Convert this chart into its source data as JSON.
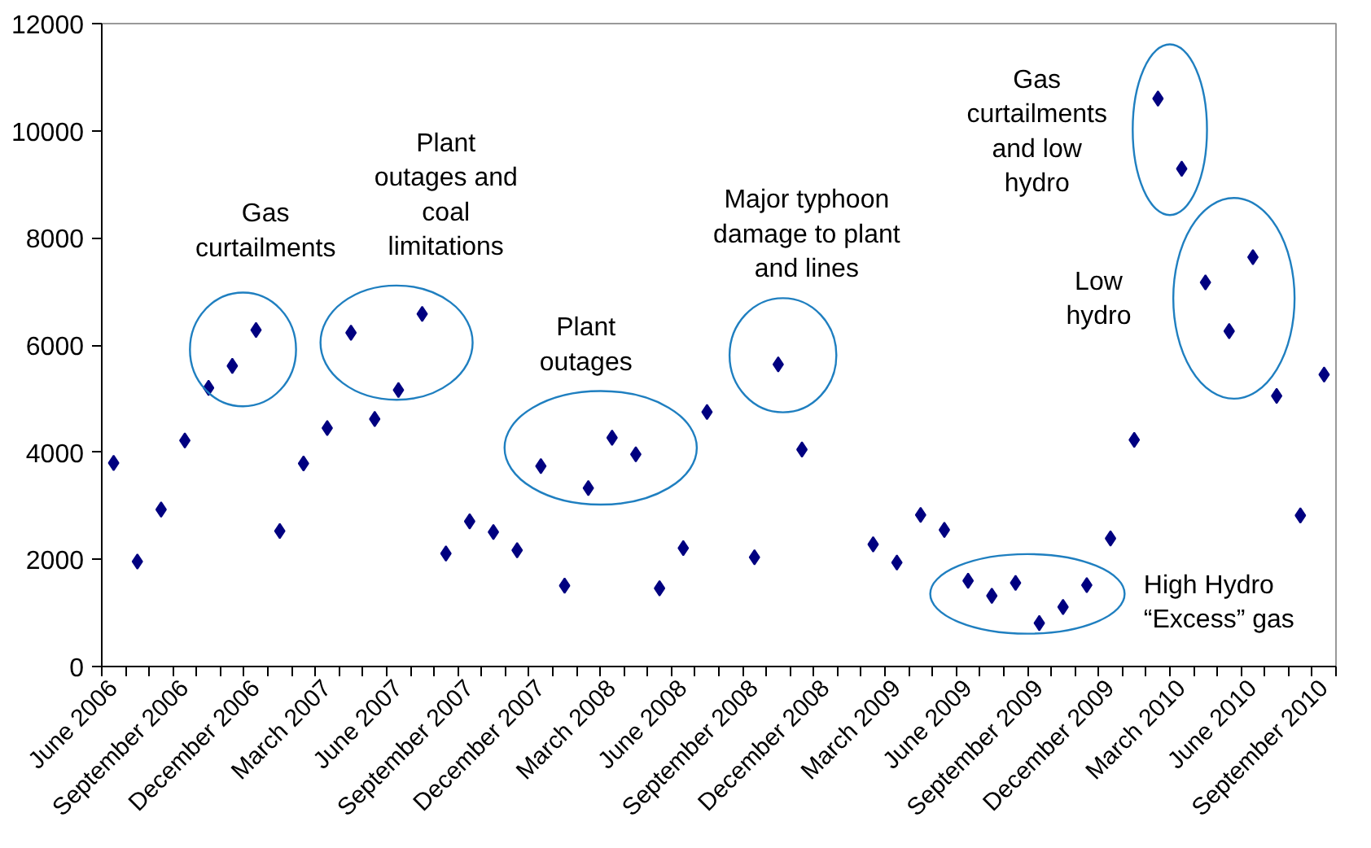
{
  "chart_data": {
    "type": "scatter",
    "categories": [
      "June 2006",
      null,
      null,
      "September 2006",
      null,
      null,
      "December 2006",
      null,
      null,
      "March 2007",
      null,
      null,
      "June 2007",
      null,
      null,
      "September 2007",
      null,
      null,
      "December 2007",
      null,
      null,
      "March 2008",
      null,
      null,
      "June 2008",
      null,
      null,
      "September 2008",
      null,
      null,
      "December 2008",
      null,
      null,
      "March 2009",
      null,
      null,
      "June 2009",
      null,
      null,
      "September 2009",
      null,
      null,
      "December 2009",
      null,
      null,
      "March 2010",
      null,
      null,
      "June 2010",
      null,
      null,
      "September 2010"
    ],
    "values": [
      3800,
      1960,
      2930,
      4220,
      5200,
      5610,
      6280,
      2530,
      3790,
      4450,
      6230,
      4620,
      5160,
      6580,
      2110,
      2710,
      2510,
      2170,
      3740,
      1510,
      3330,
      4270,
      3960,
      1460,
      2210,
      4750,
      null,
      2040,
      5640,
      4050,
      null,
      null,
      2280,
      1940,
      2830,
      2550,
      1600,
      1320,
      1560,
      810,
      1110,
      1520,
      2390,
      4230,
      10600,
      9290,
      7170,
      6260,
      7640,
      5050,
      2820,
      5450
    ],
    "color": "#000080",
    "marker": "diamond",
    "ylim": [
      0,
      12000
    ],
    "yticks": [
      0,
      2000,
      4000,
      6000,
      8000,
      10000,
      12000
    ],
    "grid": false,
    "annotations": [
      "Gas curtailments",
      "Plant outages and coal limitations",
      "Plant outages",
      "Major typhoon damage to plant and lines",
      "Gas curtailments and low hydro",
      "Low hydro",
      "High Hydro “Excess” gas"
    ]
  }
}
